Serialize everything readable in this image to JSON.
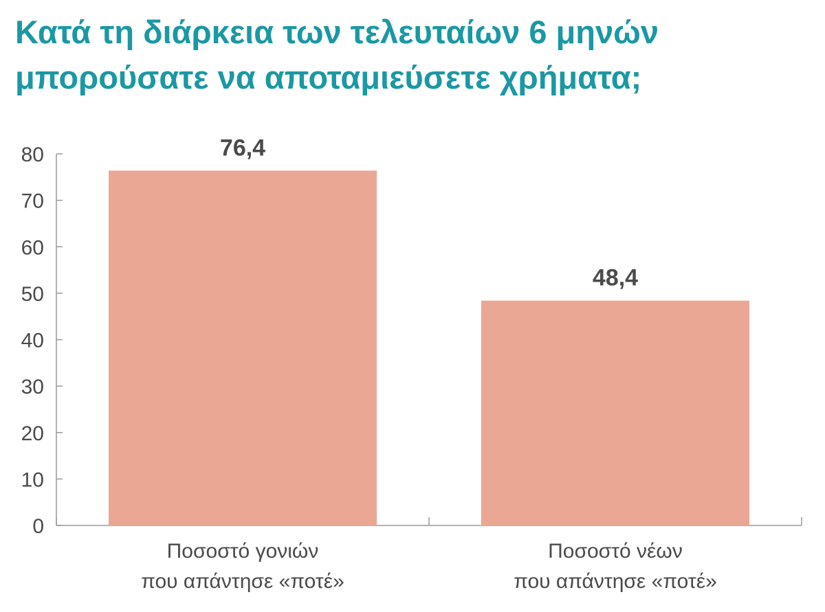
{
  "chart_data": {
    "type": "bar",
    "title_lines": [
      "Κατά τη διάρκεια των τελευταίων 6 μηνών",
      "μπορούσατε να αποταμιεύσετε χρήματα;"
    ],
    "categories": [
      [
        "Ποσοστό γονιών",
        "που απάντησε «ποτέ»"
      ],
      [
        "Ποσοστό νέων",
        "που απάντησε «ποτέ»"
      ]
    ],
    "values": [
      76.4,
      48.4
    ],
    "value_labels": [
      "76,4",
      "48,4"
    ],
    "yticks": [
      0,
      10,
      20,
      30,
      40,
      50,
      60,
      70,
      80
    ],
    "ylim": [
      0,
      80
    ],
    "bar_color": "#eaa894",
    "title_color": "#1b98a3",
    "axis_color": "#9a9a9a",
    "grid": false,
    "legend": "none"
  }
}
